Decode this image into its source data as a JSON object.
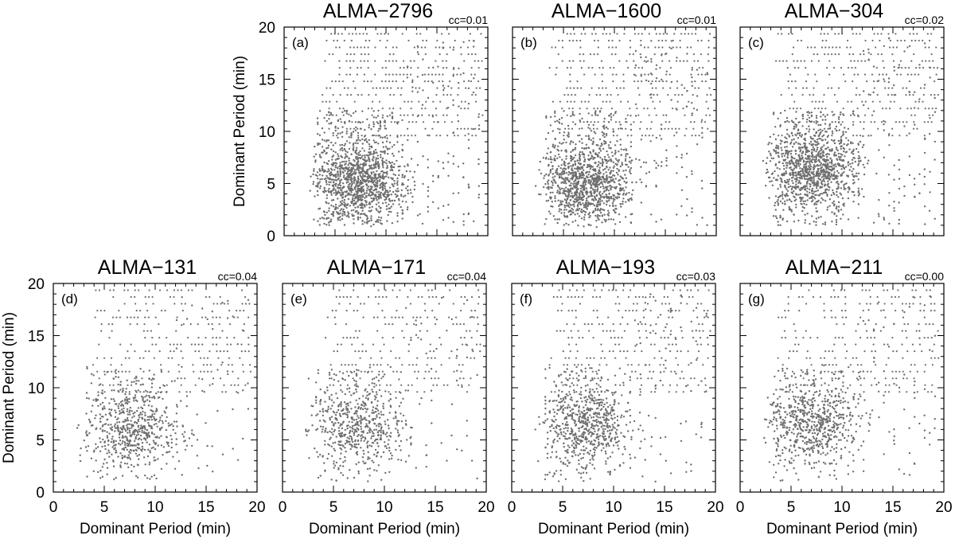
{
  "chart_data": [
    {
      "type": "scatter",
      "panel_label": "(a)",
      "title": "ALMA−2796",
      "cc_label": "cc=0.01",
      "ylabel": "Dominant Period (min)",
      "xlabel": "",
      "xlim": [
        0,
        20
      ],
      "ylim": [
        0,
        20
      ],
      "xticks": [
        "0",
        "5",
        "10",
        "15",
        "20"
      ],
      "yticks": [
        "0",
        "5",
        "10",
        "15",
        "20"
      ],
      "show_x_tick_labels": false,
      "show_y_tick_labels": true,
      "point_color": "#6e6e6e",
      "cluster": {
        "x_center": 7.5,
        "y_center": 5.2,
        "density": 1.0
      },
      "notes": "dense column/row grid of points at discrete periods; densest near x≈4–10, y≈3–7"
    },
    {
      "type": "scatter",
      "panel_label": "(b)",
      "title": "ALMA−1600",
      "cc_label": "cc=0.01",
      "ylabel": "",
      "xlabel": "",
      "xlim": [
        0,
        20
      ],
      "ylim": [
        0,
        20
      ],
      "xticks": [
        "0",
        "5",
        "10",
        "15",
        "20"
      ],
      "yticks": [
        "0",
        "5",
        "10",
        "15",
        "20"
      ],
      "show_x_tick_labels": false,
      "show_y_tick_labels": false,
      "point_color": "#6e6e6e",
      "cluster": {
        "x_center": 7.5,
        "y_center": 5.0,
        "density": 0.9
      }
    },
    {
      "type": "scatter",
      "panel_label": "(c)",
      "title": "ALMA−304",
      "cc_label": "cc=0.02",
      "ylabel": "",
      "xlabel": "",
      "xlim": [
        0,
        20
      ],
      "ylim": [
        0,
        20
      ],
      "xticks": [
        "0",
        "5",
        "10",
        "15",
        "20"
      ],
      "yticks": [
        "0",
        "5",
        "10",
        "15",
        "20"
      ],
      "show_x_tick_labels": false,
      "show_y_tick_labels": false,
      "point_color": "#6e6e6e",
      "cluster": {
        "x_center": 7.0,
        "y_center": 6.5,
        "density": 0.9
      }
    },
    {
      "type": "scatter",
      "panel_label": "(d)",
      "title": "ALMA−131",
      "cc_label": "cc=0.04",
      "ylabel": "Dominant Period (min)",
      "xlabel": "Dominant Period (min)",
      "xlim": [
        0,
        20
      ],
      "ylim": [
        0,
        20
      ],
      "xticks": [
        "0",
        "5",
        "10",
        "15",
        "20"
      ],
      "yticks": [
        "0",
        "5",
        "10",
        "15",
        "20"
      ],
      "show_x_tick_labels": true,
      "show_y_tick_labels": true,
      "point_color": "#6e6e6e",
      "cluster": {
        "x_center": 8.0,
        "y_center": 6.0,
        "density": 0.5
      }
    },
    {
      "type": "scatter",
      "panel_label": "(e)",
      "title": "ALMA−171",
      "cc_label": "cc=0.04",
      "ylabel": "",
      "xlabel": "Dominant Period (min)",
      "xlim": [
        0,
        20
      ],
      "ylim": [
        0,
        20
      ],
      "xticks": [
        "0",
        "5",
        "10",
        "15",
        "20"
      ],
      "yticks": [
        "0",
        "5",
        "10",
        "15",
        "20"
      ],
      "show_x_tick_labels": true,
      "show_y_tick_labels": false,
      "point_color": "#6e6e6e",
      "cluster": {
        "x_center": 7.5,
        "y_center": 6.5,
        "density": 0.45
      }
    },
    {
      "type": "scatter",
      "panel_label": "(f)",
      "title": "ALMA−193",
      "cc_label": "cc=0.03",
      "ylabel": "",
      "xlabel": "Dominant Period (min)",
      "xlim": [
        0,
        20
      ],
      "ylim": [
        0,
        20
      ],
      "xticks": [
        "0",
        "5",
        "10",
        "15",
        "20"
      ],
      "yticks": [
        "0",
        "5",
        "10",
        "15",
        "20"
      ],
      "show_x_tick_labels": true,
      "show_y_tick_labels": false,
      "point_color": "#6e6e6e",
      "cluster": {
        "x_center": 7.5,
        "y_center": 6.5,
        "density": 0.55
      }
    },
    {
      "type": "scatter",
      "panel_label": "(g)",
      "title": "ALMA−211",
      "cc_label": "cc=0.00",
      "ylabel": "",
      "xlabel": "Dominant Period (min)",
      "xlim": [
        0,
        20
      ],
      "ylim": [
        0,
        20
      ],
      "xticks": [
        "0",
        "5",
        "10",
        "15",
        "20"
      ],
      "yticks": [
        "0",
        "5",
        "10",
        "15",
        "20"
      ],
      "show_x_tick_labels": true,
      "show_y_tick_labels": false,
      "point_color": "#6e6e6e",
      "cluster": {
        "x_center": 7.0,
        "y_center": 7.0,
        "density": 0.55
      }
    }
  ]
}
